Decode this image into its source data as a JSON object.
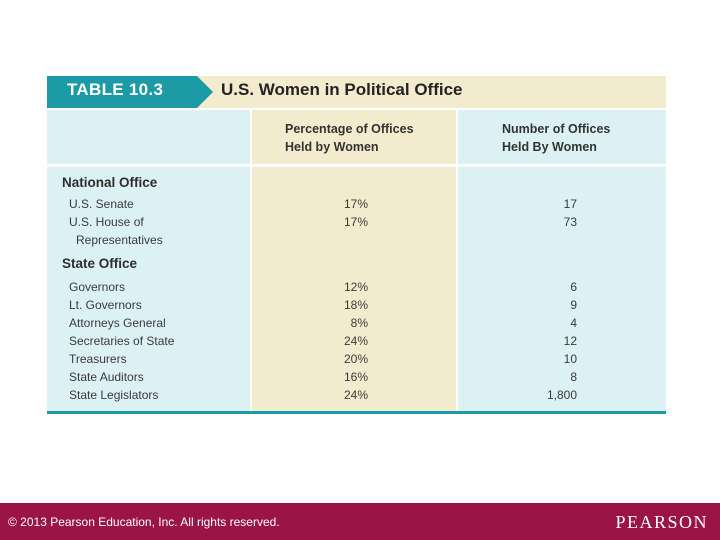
{
  "table": {
    "label": "TABLE 10.3",
    "title": "U.S. Women in Political Office",
    "col2_header": "Percentage of Offices\nHeld by Women",
    "col3_header": "Number of Offices\nHeld By Women",
    "sections": [
      {
        "name": "National Office",
        "rows": [
          {
            "label": "U.S. Senate",
            "pct": "17%",
            "num": "17"
          },
          {
            "label": "U.S. House of",
            "label2": "Representatives",
            "pct": "17%",
            "num": "73"
          }
        ]
      },
      {
        "name": "State Office",
        "rows": [
          {
            "label": "Governors",
            "pct": "12%",
            "num": "6"
          },
          {
            "label": "Lt. Governors",
            "pct": "18%",
            "num": "9"
          },
          {
            "label": "Attorneys General",
            "pct": "8%",
            "num": "4"
          },
          {
            "label": "Secretaries of State",
            "pct": "24%",
            "num": "12"
          },
          {
            "label": "Treasurers",
            "pct": "20%",
            "num": "10"
          },
          {
            "label": "State Auditors",
            "pct": "16%",
            "num": "8"
          },
          {
            "label": "State Legislators",
            "pct": "24%",
            "num": "1,800"
          }
        ]
      }
    ]
  },
  "footer": {
    "copyright": "© 2013  Pearson Education, Inc. All rights reserved.",
    "brand": "PEARSON"
  }
}
